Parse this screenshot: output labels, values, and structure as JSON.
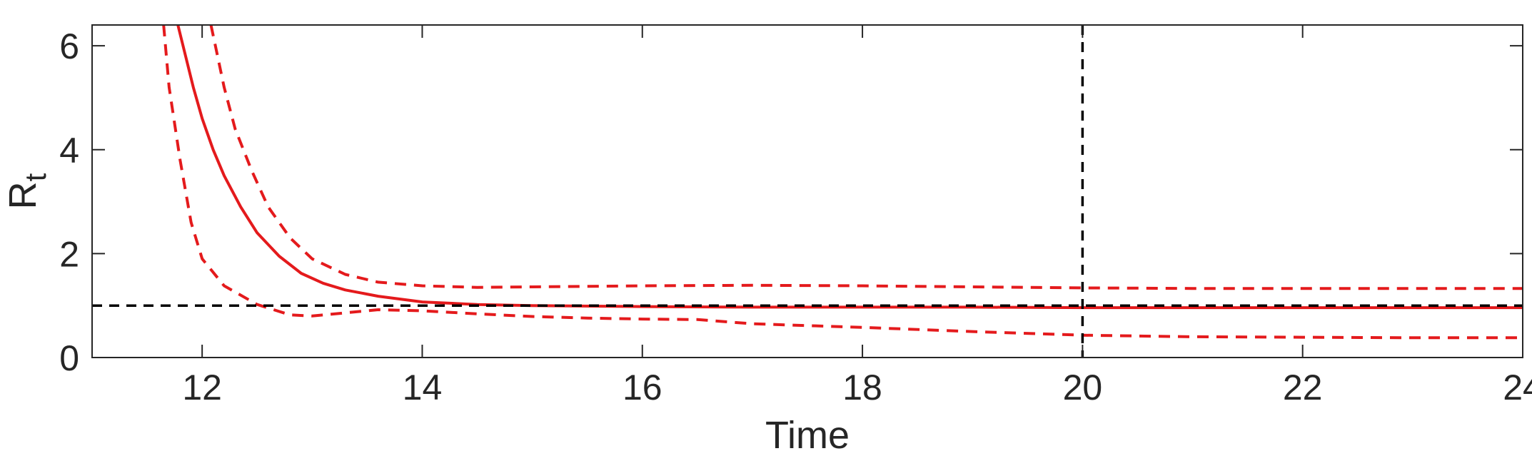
{
  "chart_data": {
    "type": "line",
    "title": "",
    "xlabel": "Time",
    "ylabel": "R",
    "ylabel_subscript": "t",
    "xlim": [
      11,
      24
    ],
    "ylim": [
      0,
      6.4
    ],
    "xticks": [
      12,
      14,
      16,
      18,
      20,
      22,
      24
    ],
    "yticks": [
      0,
      2,
      4,
      6
    ],
    "grid": false,
    "legend": "none",
    "colors": {
      "estimate": "#e41a1c",
      "reference": "#000000",
      "axis": "#262626"
    },
    "series": [
      {
        "role": "estimate",
        "style": "solid",
        "x": [
          11.78,
          11.85,
          11.92,
          12.0,
          12.1,
          12.2,
          12.35,
          12.5,
          12.7,
          12.9,
          13.1,
          13.3,
          13.6,
          14.0,
          14.5,
          15.0,
          16.0,
          17.0,
          18.0,
          19.0,
          20.0,
          21.0,
          22.0,
          23.0,
          24.0
        ],
        "y": [
          6.4,
          5.8,
          5.2,
          4.6,
          4.0,
          3.5,
          2.9,
          2.4,
          1.95,
          1.62,
          1.43,
          1.3,
          1.18,
          1.07,
          1.02,
          1.0,
          0.98,
          0.97,
          0.97,
          0.97,
          0.96,
          0.96,
          0.96,
          0.96,
          0.96
        ]
      },
      {
        "role": "upper",
        "style": "dashed",
        "x": [
          12.08,
          12.12,
          12.2,
          12.3,
          12.45,
          12.6,
          12.8,
          13.0,
          13.3,
          13.6,
          14.0,
          14.5,
          15.0,
          16.0,
          17.0,
          18.0,
          19.0,
          20.0,
          21.0,
          22.0,
          23.0,
          24.0
        ],
        "y": [
          6.4,
          6.0,
          5.2,
          4.4,
          3.6,
          2.9,
          2.3,
          1.9,
          1.6,
          1.45,
          1.38,
          1.35,
          1.36,
          1.38,
          1.39,
          1.38,
          1.36,
          1.34,
          1.33,
          1.33,
          1.33,
          1.33
        ]
      },
      {
        "role": "lower",
        "style": "dashed",
        "x": [
          11.65,
          11.7,
          11.8,
          11.9,
          12.0,
          12.2,
          12.5,
          12.8,
          13.0,
          13.3,
          13.6,
          14.0,
          14.5,
          15.0,
          15.5,
          16.0,
          16.5,
          17.0,
          18.0,
          19.0,
          20.0,
          21.0,
          22.0,
          23.0,
          24.0
        ],
        "y": [
          6.4,
          5.2,
          3.8,
          2.6,
          1.9,
          1.38,
          1.02,
          0.82,
          0.8,
          0.86,
          0.92,
          0.9,
          0.84,
          0.79,
          0.76,
          0.74,
          0.73,
          0.65,
          0.58,
          0.5,
          0.43,
          0.4,
          0.39,
          0.38,
          0.38
        ]
      }
    ],
    "reference_lines": [
      {
        "orientation": "horizontal",
        "value": 1,
        "style": "dashed"
      },
      {
        "orientation": "vertical",
        "value": 20,
        "style": "dashed"
      }
    ]
  }
}
